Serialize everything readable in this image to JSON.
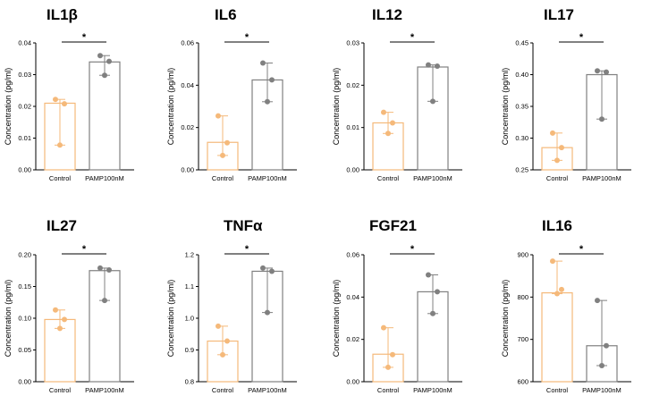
{
  "colors": {
    "control": "#F5B97A",
    "treatment": "#808080",
    "axis": "#000000"
  },
  "chart_data": [
    {
      "type": "bar",
      "title": "IL1β",
      "ylabel": "Concentration (pg/ml)",
      "categories": [
        "Control",
        "PAMP100nM"
      ],
      "values": [
        0.021,
        0.034
      ],
      "points": [
        [
          0.0222,
          0.0208,
          0.0078
        ],
        [
          0.036,
          0.0342,
          0.0298
        ]
      ],
      "ylim": [
        0,
        0.04
      ],
      "yticks": [
        "0.00",
        "0.01",
        "0.02",
        "0.03",
        "0.04"
      ],
      "significance": "*"
    },
    {
      "type": "bar",
      "title": "IL6",
      "ylabel": "Concentration (pg/ml)",
      "categories": [
        "Control",
        "PAMP100nM"
      ],
      "values": [
        0.013,
        0.0425
      ],
      "points": [
        [
          0.0255,
          0.0128,
          0.0068
        ],
        [
          0.0505,
          0.0425,
          0.0322
        ]
      ],
      "ylim": [
        0,
        0.06
      ],
      "yticks": [
        "0.00",
        "0.02",
        "0.04",
        "0.06"
      ],
      "significance": "*"
    },
    {
      "type": "bar",
      "title": "IL12",
      "ylabel": "Concentration (pg/ml)",
      "categories": [
        "Control",
        "PAMP100nM"
      ],
      "values": [
        0.0111,
        0.0243
      ],
      "points": [
        [
          0.0136,
          0.0111,
          0.0086
        ],
        [
          0.0248,
          0.0245,
          0.0162
        ]
      ],
      "ylim": [
        0,
        0.03
      ],
      "yticks": [
        "0.00",
        "0.01",
        "0.02",
        "0.03"
      ],
      "significance": "*"
    },
    {
      "type": "bar",
      "title": "IL17",
      "ylabel": "Concentration (pg/ml)",
      "categories": [
        "Control",
        "PAMP100nM"
      ],
      "values": [
        0.285,
        0.4
      ],
      "points": [
        [
          0.308,
          0.285,
          0.265
        ],
        [
          0.406,
          0.404,
          0.33
        ]
      ],
      "ylim": [
        0.25,
        0.45
      ],
      "yticks": [
        "0.25",
        "0.30",
        "0.35",
        "0.40",
        "0.45"
      ],
      "significance": "*"
    },
    {
      "type": "bar",
      "title": "IL27",
      "ylabel": "Concentration (pg/ml)",
      "categories": [
        "Control",
        "PAMP100nM"
      ],
      "values": [
        0.098,
        0.175
      ],
      "points": [
        [
          0.113,
          0.098,
          0.084
        ],
        [
          0.179,
          0.176,
          0.128
        ]
      ],
      "ylim": [
        0,
        0.2
      ],
      "yticks": [
        "0.00",
        "0.05",
        "0.10",
        "0.15",
        "0.20"
      ],
      "significance": "*"
    },
    {
      "type": "bar",
      "title": "TNFα",
      "ylabel": "Concentration (pg/ml)",
      "categories": [
        "Control",
        "PAMP100nM"
      ],
      "values": [
        0.928,
        1.148
      ],
      "points": [
        [
          0.975,
          0.928,
          0.885
        ],
        [
          1.158,
          1.148,
          1.018
        ]
      ],
      "ylim": [
        0.8,
        1.2
      ],
      "yticks": [
        "0.8",
        "0.9",
        "1.0",
        "1.1",
        "1.2"
      ],
      "significance": "*"
    },
    {
      "type": "bar",
      "title": "FGF21",
      "ylabel": "Concentration (pg/ml)",
      "categories": [
        "Control",
        "PAMP100nM"
      ],
      "values": [
        0.013,
        0.0425
      ],
      "points": [
        [
          0.0255,
          0.0128,
          0.0068
        ],
        [
          0.0505,
          0.0425,
          0.0322
        ]
      ],
      "ylim": [
        0,
        0.06
      ],
      "yticks": [
        "0.00",
        "0.02",
        "0.04",
        "0.06"
      ],
      "significance": "*"
    },
    {
      "type": "bar",
      "title": "IL16",
      "ylabel": "Concentration (pg/ml)",
      "categories": [
        "Control",
        "PAMP100nM"
      ],
      "values": [
        810,
        685
      ],
      "points": [
        [
          885,
          818,
          808
        ],
        [
          792,
          685,
          638
        ]
      ],
      "ylim": [
        600,
        900
      ],
      "yticks": [
        "600",
        "700",
        "800",
        "900"
      ],
      "significance": "*"
    }
  ]
}
